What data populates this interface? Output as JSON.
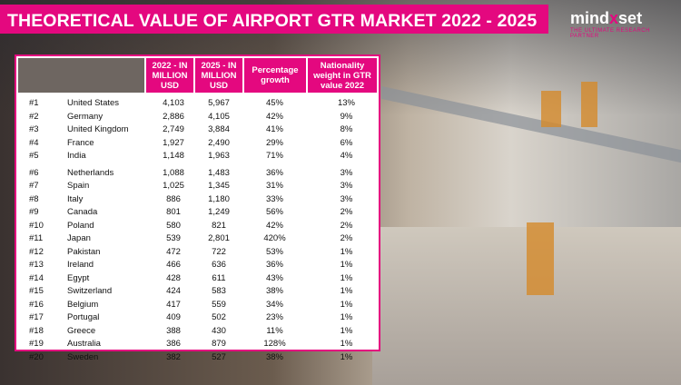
{
  "title": "THEORETICAL VALUE OF AIRPORT GTR MARKET 2022 - 2025",
  "logo": {
    "text_left": "m",
    "text_mid": "i",
    "text_right": "nd",
    "text_x": "x",
    "text_end": "set",
    "tagline": "THE ULTIMATE RESEARCH PARTNER"
  },
  "colors": {
    "accent": "#e4087f",
    "header_blank": "#6e6661"
  },
  "table": {
    "headers": {
      "v2022": [
        "2022 - IN",
        "MILLION",
        "USD"
      ],
      "v2025": [
        "2025 - IN",
        "MILLION",
        "USD"
      ],
      "growth": [
        "Percentage",
        "growth"
      ],
      "weight": [
        "Nationality",
        "weight in GTR",
        "value 2022"
      ]
    },
    "rows": [
      {
        "rank": "#1",
        "country": "United States",
        "v2022": "4,103",
        "v2025": "5,967",
        "growth": "45%",
        "weight": "13%"
      },
      {
        "rank": "#2",
        "country": "Germany",
        "v2022": "2,886",
        "v2025": "4,105",
        "growth": "42%",
        "weight": "9%"
      },
      {
        "rank": "#3",
        "country": "United Kingdom",
        "v2022": "2,749",
        "v2025": "3,884",
        "growth": "41%",
        "weight": "8%"
      },
      {
        "rank": "#4",
        "country": "France",
        "v2022": "1,927",
        "v2025": "2,490",
        "growth": "29%",
        "weight": "6%"
      },
      {
        "rank": "#5",
        "country": "India",
        "v2022": "1,148",
        "v2025": "1,963",
        "growth": "71%",
        "weight": "4%"
      },
      {
        "rank": "#6",
        "country": "Netherlands",
        "v2022": "1,088",
        "v2025": "1,483",
        "growth": "36%",
        "weight": "3%"
      },
      {
        "rank": "#7",
        "country": "Spain",
        "v2022": "1,025",
        "v2025": "1,345",
        "growth": "31%",
        "weight": "3%"
      },
      {
        "rank": "#8",
        "country": "Italy",
        "v2022": "886",
        "v2025": "1,180",
        "growth": "33%",
        "weight": "3%"
      },
      {
        "rank": "#9",
        "country": "Canada",
        "v2022": "801",
        "v2025": "1,249",
        "growth": "56%",
        "weight": "2%"
      },
      {
        "rank": "#10",
        "country": "Poland",
        "v2022": "580",
        "v2025": "821",
        "growth": "42%",
        "weight": "2%"
      },
      {
        "rank": "#11",
        "country": "Japan",
        "v2022": "539",
        "v2025": "2,801",
        "growth": "420%",
        "weight": "2%"
      },
      {
        "rank": "#12",
        "country": "Pakistan",
        "v2022": "472",
        "v2025": "722",
        "growth": "53%",
        "weight": "1%"
      },
      {
        "rank": "#13",
        "country": "Ireland",
        "v2022": "466",
        "v2025": "636",
        "growth": "36%",
        "weight": "1%"
      },
      {
        "rank": "#14",
        "country": "Egypt",
        "v2022": "428",
        "v2025": "611",
        "growth": "43%",
        "weight": "1%"
      },
      {
        "rank": "#15",
        "country": "Switzerland",
        "v2022": "424",
        "v2025": "583",
        "growth": "38%",
        "weight": "1%"
      },
      {
        "rank": "#16",
        "country": "Belgium",
        "v2022": "417",
        "v2025": "559",
        "growth": "34%",
        "weight": "1%"
      },
      {
        "rank": "#17",
        "country": "Portugal",
        "v2022": "409",
        "v2025": "502",
        "growth": "23%",
        "weight": "1%"
      },
      {
        "rank": "#18",
        "country": "Greece",
        "v2022": "388",
        "v2025": "430",
        "growth": "11%",
        "weight": "1%"
      },
      {
        "rank": "#19",
        "country": "Australia",
        "v2022": "386",
        "v2025": "879",
        "growth": "128%",
        "weight": "1%"
      },
      {
        "rank": "#20",
        "country": "Sweden",
        "v2022": "382",
        "v2025": "527",
        "growth": "38%",
        "weight": "1%"
      }
    ]
  }
}
